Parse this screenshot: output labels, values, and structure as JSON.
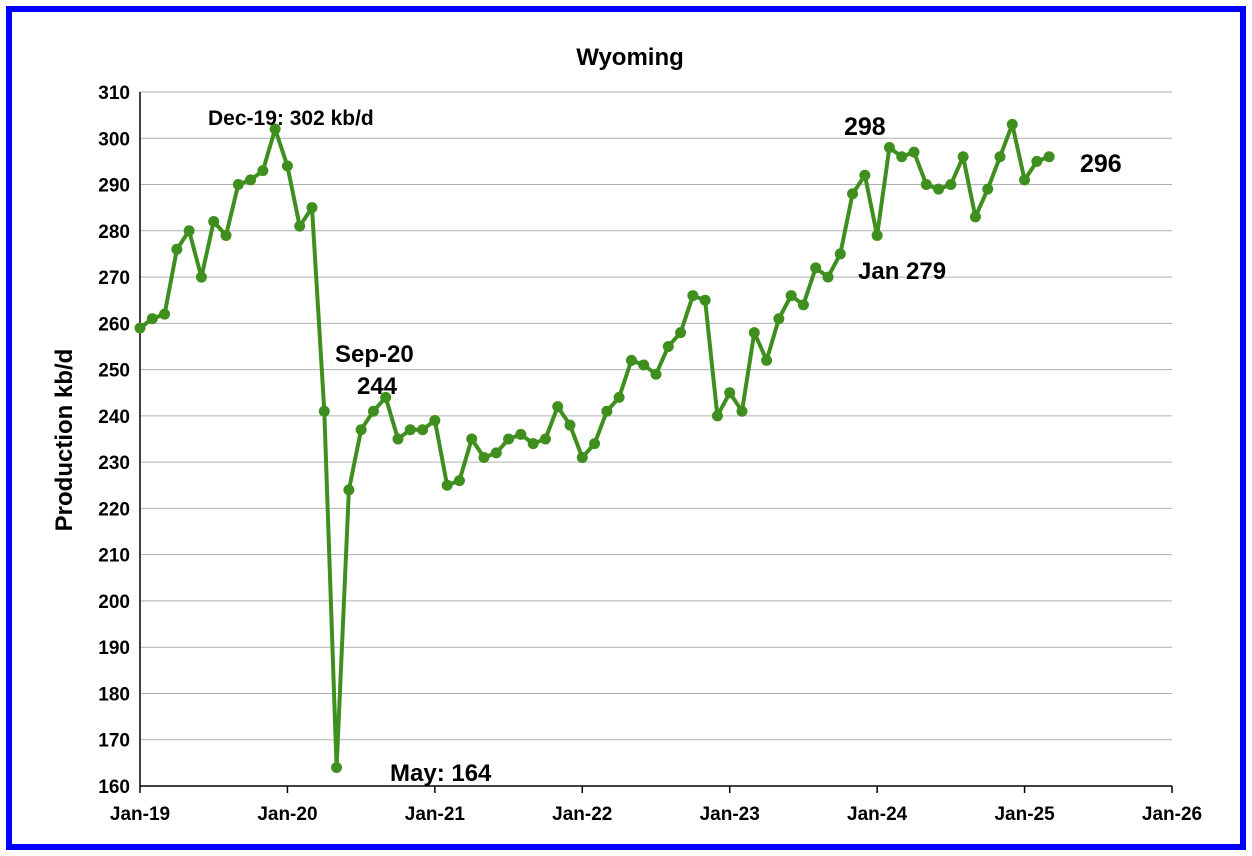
{
  "chart_data": {
    "type": "line",
    "title": "Wyoming",
    "xlabel": "",
    "ylabel": "Production kb/d",
    "ylim": [
      160,
      310
    ],
    "ytick_step": 10,
    "x_ticks": [
      "Jan-19",
      "Jan-20",
      "Jan-21",
      "Jan-22",
      "Jan-23",
      "Jan-24",
      "Jan-25",
      "Jan-26"
    ],
    "grid": true,
    "legend": "none",
    "start": "Jan-19",
    "series": [
      {
        "color": "#3f8f1f",
        "values": [
          259,
          261,
          262,
          276,
          280,
          270,
          282,
          279,
          290,
          291,
          293,
          302,
          294,
          281,
          285,
          241,
          164,
          224,
          237,
          241,
          244,
          235,
          237,
          237,
          239,
          225,
          226,
          235,
          231,
          232,
          235,
          236,
          234,
          235,
          242,
          238,
          231,
          234,
          241,
          244,
          252,
          251,
          249,
          255,
          258,
          266,
          265,
          240,
          245,
          241,
          258,
          252,
          261,
          266,
          264,
          272,
          270,
          275,
          288,
          292,
          279,
          298,
          296,
          297,
          290,
          289,
          290,
          296,
          283,
          289,
          296,
          303,
          291,
          295,
          296
        ]
      }
    ],
    "annotations": [
      {
        "text": "Dec-19: 302 kb/d"
      },
      {
        "text": "Sep-20"
      },
      {
        "text": "244"
      },
      {
        "text": "May: 164"
      },
      {
        "text": "298"
      },
      {
        "text": "Jan 279"
      },
      {
        "text": "296"
      }
    ]
  }
}
